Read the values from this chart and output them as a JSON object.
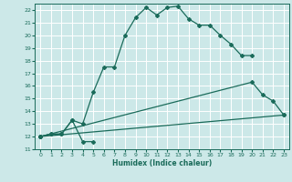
{
  "xlabel": "Humidex (Indice chaleur)",
  "bg_color": "#cce8e8",
  "grid_color": "#ffffff",
  "line_color": "#1a6b5a",
  "xlim": [
    -0.5,
    23.5
  ],
  "ylim": [
    11,
    22.5
  ],
  "xticks": [
    0,
    1,
    2,
    3,
    4,
    5,
    6,
    7,
    8,
    9,
    10,
    11,
    12,
    13,
    14,
    15,
    16,
    17,
    18,
    19,
    20,
    21,
    22,
    23
  ],
  "yticks": [
    11,
    12,
    13,
    14,
    15,
    16,
    17,
    18,
    19,
    20,
    21,
    22
  ],
  "series": [
    {
      "x": [
        0,
        1,
        2,
        3,
        4,
        5,
        6,
        7,
        8,
        9,
        10,
        11,
        12,
        13,
        14,
        15,
        16,
        17,
        18,
        19,
        20
      ],
      "y": [
        12.0,
        12.2,
        12.2,
        13.3,
        13.0,
        15.5,
        17.5,
        17.5,
        20.0,
        21.4,
        22.2,
        21.6,
        22.2,
        22.3,
        21.3,
        20.8,
        20.8,
        20.0,
        19.3,
        18.4,
        18.4
      ],
      "linestyle": "-"
    },
    {
      "x": [
        0,
        23
      ],
      "y": [
        12.0,
        13.7
      ],
      "linestyle": "-"
    },
    {
      "x": [
        0,
        20,
        21,
        22,
        23
      ],
      "y": [
        12.0,
        16.3,
        15.3,
        14.8,
        13.7
      ],
      "linestyle": "-"
    },
    {
      "x": [
        0,
        1,
        2,
        3,
        4,
        5
      ],
      "y": [
        12.0,
        12.2,
        12.2,
        13.3,
        11.6,
        11.6
      ],
      "linestyle": "-"
    }
  ]
}
